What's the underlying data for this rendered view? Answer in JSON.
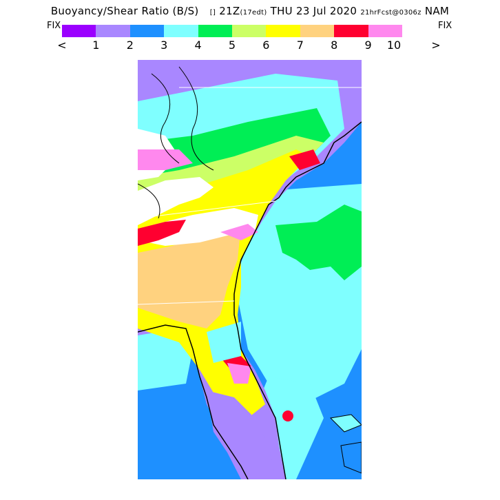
{
  "header": {
    "title_main": "Buoyancy/Shear Ratio (B/S)",
    "title_box": "[]",
    "time": "21Z",
    "local_time": "(17edt)",
    "date": "THU 23 Jul 2020",
    "forecast": "21hrFcst@0306z",
    "model": "NAM"
  },
  "legend": {
    "fix_left": "FIX",
    "fix_right": "FIX",
    "less_than": "<",
    "greater_than": ">",
    "ticks": [
      "1",
      "2",
      "3",
      "4",
      "5",
      "6",
      "7",
      "8",
      "9",
      "10"
    ],
    "colors": [
      "#9b00ff",
      "#a987ff",
      "#1e90ff",
      "#7fffff",
      "#00ee55",
      "#ccff66",
      "#ffff00",
      "#ffd27f",
      "#ff0030",
      "#ff88ee"
    ]
  },
  "map": {
    "ocean_color": "#1e90ff",
    "coastline_color": "#000000"
  }
}
